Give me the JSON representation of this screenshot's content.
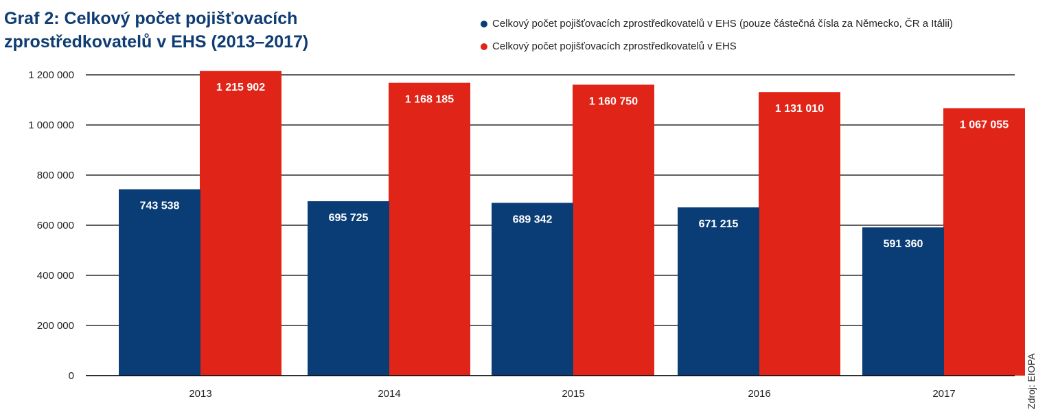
{
  "title": "Graf 2: Celkový počet pojišťovacích zprostředkovatelů v EHS (2013–2017)",
  "source": "Zdroj: EIOPA",
  "colors": {
    "blue": "#0a3d75",
    "red": "#e02518",
    "title": "#0f3d73"
  },
  "chart_data": {
    "type": "bar",
    "title": "Graf 2: Celkový počet pojišťovacích zprostředkovatelů v EHS (2013–2017)",
    "categories": [
      "2013",
      "2014",
      "2015",
      "2016",
      "2017"
    ],
    "series": [
      {
        "name": "Celkový počet pojišťovacích zprostředkovatelů v EHS (pouze částečná čísla za Německo, ČR a Itálii)",
        "color": "#0a3d75",
        "values": [
          743538,
          695725,
          689342,
          671215,
          591360
        ],
        "labels": [
          "743 538",
          "695 725",
          "689 342",
          "671 215",
          "591 360"
        ]
      },
      {
        "name": "Celkový počet pojišťovacích zprostředkovatelů v EHS",
        "color": "#e02518",
        "values": [
          1215902,
          1168185,
          1160750,
          1131010,
          1067055
        ],
        "labels": [
          "1 215 902",
          "1 168 185",
          "1 160 750",
          "1 131 010",
          "1 067 055"
        ]
      }
    ],
    "yticks": [
      0,
      200000,
      400000,
      600000,
      800000,
      1000000,
      1200000
    ],
    "ytick_labels": [
      "0",
      "200 000",
      "400 000",
      "600 000",
      "800 000",
      "1 000 000",
      "1 200 000"
    ],
    "ylim": [
      0,
      1200000
    ],
    "grid": true,
    "legend_position": "top-right"
  }
}
